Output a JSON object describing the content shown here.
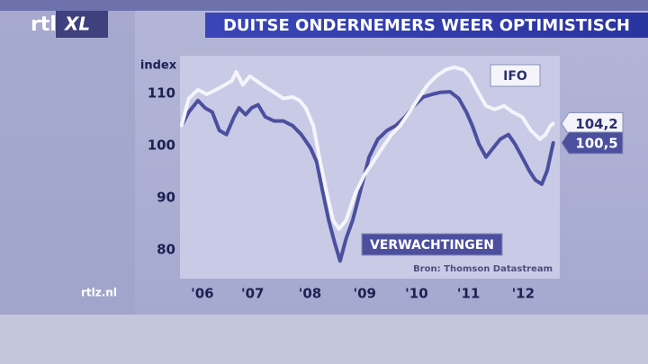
{
  "logo": {
    "brand": "rtl",
    "suffix": "XL"
  },
  "site": "rtlz.nl",
  "chart_data": {
    "type": "line",
    "title": "DUITSE ONDERNEMERS WEER OPTIMISTISCH",
    "ylabel": "index",
    "source": "Bron: Thomson Datastream",
    "xlim": [
      2005.97,
      2012.92
    ],
    "ylim": [
      74.5,
      117.2
    ],
    "yticks": [
      80,
      90,
      100,
      110
    ],
    "xticks": [
      {
        "value": 2006.38,
        "label": "'06"
      },
      {
        "value": 2007.3,
        "label": "'07"
      },
      {
        "value": 2008.35,
        "label": "'08"
      },
      {
        "value": 2009.35,
        "label": "'09"
      },
      {
        "value": 2010.3,
        "label": "'10"
      },
      {
        "value": 2011.25,
        "label": "'11"
      },
      {
        "value": 2012.25,
        "label": "'12"
      }
    ],
    "grid": false,
    "series": [
      {
        "name": "IFO",
        "color": "#f4f4fa",
        "x": [
          2006.0,
          2006.13,
          2006.3,
          2006.46,
          2006.63,
          2006.79,
          2006.92,
          2007.0,
          2007.12,
          2007.25,
          2007.37,
          2007.53,
          2007.69,
          2007.86,
          2008.03,
          2008.16,
          2008.27,
          2008.41,
          2008.52,
          2008.64,
          2008.77,
          2008.88,
          2009.01,
          2009.18,
          2009.34,
          2009.51,
          2009.67,
          2009.84,
          2010.0,
          2010.17,
          2010.33,
          2010.5,
          2010.66,
          2010.83,
          2010.99,
          2011.16,
          2011.27,
          2011.4,
          2011.57,
          2011.73,
          2011.9,
          2012.06,
          2012.23,
          2012.39,
          2012.56,
          2012.66,
          2012.75,
          2012.8
        ],
        "values": [
          103.8,
          109.0,
          110.7,
          109.8,
          110.7,
          111.6,
          112.4,
          114.1,
          111.6,
          113.3,
          112.4,
          111.2,
          110.2,
          109.0,
          109.3,
          108.6,
          107.2,
          103.8,
          97.8,
          91.7,
          85.7,
          84.0,
          85.7,
          90.9,
          94.3,
          96.9,
          99.5,
          102.1,
          103.8,
          106.4,
          109.0,
          111.6,
          113.3,
          114.5,
          115.0,
          114.5,
          113.3,
          110.7,
          107.6,
          106.9,
          107.6,
          106.4,
          105.5,
          102.9,
          101.2,
          102.1,
          103.8,
          104.2
        ],
        "value_labels": [
          null,
          null,
          null,
          null,
          null,
          null,
          null,
          null,
          null,
          null,
          null,
          null,
          null,
          null,
          null,
          null,
          null,
          null,
          null,
          null,
          null,
          null,
          null,
          null,
          null,
          null,
          null,
          null,
          null,
          null,
          null,
          null,
          null,
          null,
          null,
          null,
          null,
          null,
          null,
          null,
          null,
          null,
          null,
          null,
          null,
          null,
          null,
          "104,2"
        ]
      },
      {
        "name": "VERWACHTINGEN",
        "color": "#4b4f9e",
        "x": [
          2006.0,
          2006.13,
          2006.3,
          2006.43,
          2006.56,
          2006.69,
          2006.82,
          2006.96,
          2007.05,
          2007.17,
          2007.28,
          2007.4,
          2007.53,
          2007.69,
          2007.86,
          2008.03,
          2008.19,
          2008.36,
          2008.47,
          2008.57,
          2008.69,
          2008.8,
          2008.9,
          2009.01,
          2009.13,
          2009.26,
          2009.43,
          2009.59,
          2009.76,
          2009.92,
          2010.09,
          2010.25,
          2010.42,
          2010.58,
          2010.74,
          2010.91,
          2011.07,
          2011.21,
          2011.32,
          2011.44,
          2011.57,
          2011.7,
          2011.83,
          2011.98,
          2012.1,
          2012.23,
          2012.36,
          2012.47,
          2012.59,
          2012.69,
          2012.8
        ],
        "values": [
          103.8,
          106.4,
          108.6,
          107.2,
          106.4,
          102.9,
          102.1,
          105.5,
          107.2,
          105.9,
          107.2,
          107.8,
          105.5,
          104.7,
          104.7,
          103.8,
          102.1,
          99.5,
          96.9,
          91.7,
          85.7,
          81.4,
          77.9,
          82.2,
          85.7,
          90.9,
          97.8,
          101.2,
          102.9,
          103.8,
          105.5,
          107.6,
          109.3,
          109.8,
          110.2,
          110.3,
          109.0,
          106.4,
          103.8,
          100.3,
          97.8,
          99.5,
          101.2,
          102.1,
          100.3,
          97.8,
          95.2,
          93.4,
          92.6,
          95.2,
          100.5
        ],
        "value_labels": [
          null,
          null,
          null,
          null,
          null,
          null,
          null,
          null,
          null,
          null,
          null,
          null,
          null,
          null,
          null,
          null,
          null,
          null,
          null,
          null,
          null,
          null,
          null,
          null,
          null,
          null,
          null,
          null,
          null,
          null,
          null,
          null,
          null,
          null,
          null,
          null,
          null,
          null,
          null,
          null,
          null,
          null,
          null,
          null,
          null,
          null,
          null,
          null,
          null,
          null,
          "100,5"
        ]
      }
    ]
  }
}
